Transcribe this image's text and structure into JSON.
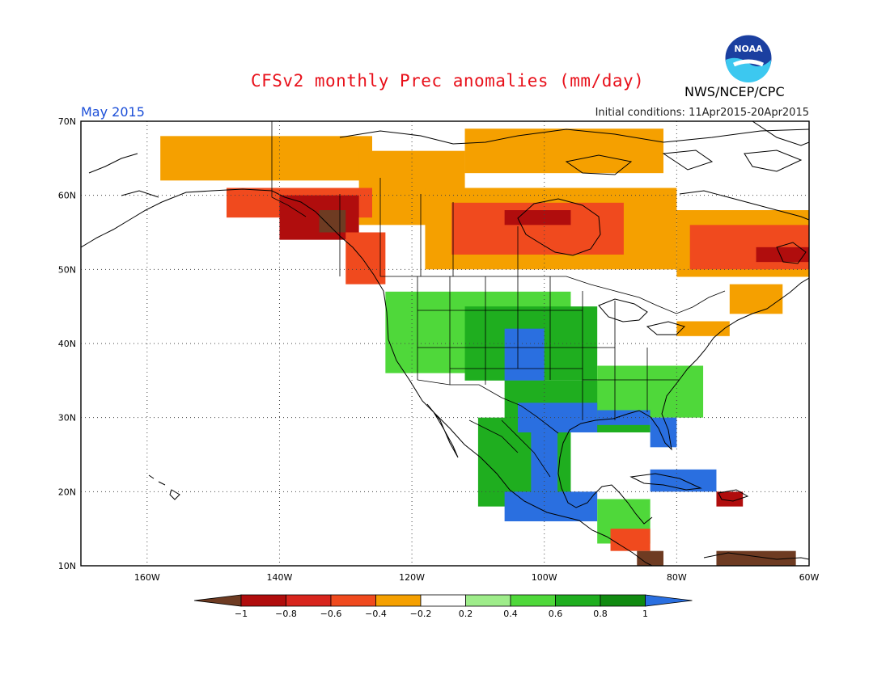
{
  "title": "CFSv2 monthly Prec anomalies (mm/day)",
  "agency": "NWS/NCEP/CPC",
  "valid_month": "May 2015",
  "initial_conditions": "Initial conditions: 11Apr2015-20Apr2015",
  "logo_text": "NOAA",
  "lat_labels": [
    "70N",
    "60N",
    "50N",
    "40N",
    "30N",
    "20N",
    "10N"
  ],
  "lon_labels": [
    "160W",
    "140W",
    "120W",
    "100W",
    "80W",
    "60W"
  ],
  "colorbar": {
    "ticks": [
      "-1",
      "-0.8",
      "-0.6",
      "-0.4",
      "-0.2",
      "0.2",
      "0.4",
      "0.6",
      "0.8",
      "1"
    ],
    "colors": [
      "#6e3b22",
      "#b00d0d",
      "#d8251d",
      "#f04a1e",
      "#f5a000",
      "#ffffff",
      "#9eec8a",
      "#4fd83a",
      "#1fae1f",
      "#108a10",
      "#2a6fe0"
    ]
  },
  "map": {
    "extent": {
      "lon": [
        -170,
        -60
      ],
      "lat": [
        10,
        70
      ]
    },
    "anomaly_regions": [
      {
        "name": "alaska-north-dry",
        "color": "#f5a000",
        "lon": [
          -158,
          -126
        ],
        "lat": [
          62,
          68
        ]
      },
      {
        "name": "yukon-dry",
        "color": "#f5a000",
        "lon": [
          -122,
          -112
        ],
        "lat": [
          60,
          64
        ]
      },
      {
        "name": "northwest-canada-dry",
        "color": "#f5a000",
        "lon": [
          -128,
          -112
        ],
        "lat": [
          56,
          66
        ]
      },
      {
        "name": "northern-canada-dry",
        "color": "#f5a000",
        "lon": [
          -112,
          -82
        ],
        "lat": [
          63,
          69
        ]
      },
      {
        "name": "prairie-dry",
        "color": "#f5a000",
        "lon": [
          -118,
          -80
        ],
        "lat": [
          50,
          61
        ]
      },
      {
        "name": "prairie-strong-dry",
        "color": "#f04a1e",
        "lon": [
          -114,
          -88
        ],
        "lat": [
          52,
          59
        ]
      },
      {
        "name": "hudson-dry-core",
        "color": "#b00d0d",
        "lon": [
          -106,
          -96
        ],
        "lat": [
          56,
          58
        ]
      },
      {
        "name": "quebec-dry",
        "color": "#f5a000",
        "lon": [
          -80,
          -60
        ],
        "lat": [
          49,
          58
        ]
      },
      {
        "name": "labrador-strong-dry",
        "color": "#f04a1e",
        "lon": [
          -78,
          -60
        ],
        "lat": [
          50,
          56
        ]
      },
      {
        "name": "labrador-dry-core",
        "color": "#b00d0d",
        "lon": [
          -68,
          -60
        ],
        "lat": [
          51,
          53
        ]
      },
      {
        "name": "maritimes-dry",
        "color": "#f5a000",
        "lon": [
          -72,
          -64
        ],
        "lat": [
          44,
          48
        ]
      },
      {
        "name": "gulf-alaska-coast-dry",
        "color": "#f04a1e",
        "lon": [
          -148,
          -126
        ],
        "lat": [
          57,
          61
        ]
      },
      {
        "name": "alaska-panhandle-very-dry",
        "color": "#b00d0d",
        "lon": [
          -140,
          -128
        ],
        "lat": [
          54,
          60
        ]
      },
      {
        "name": "bc-coast-driest",
        "color": "#6e3b22",
        "lon": [
          -134,
          -130
        ],
        "lat": [
          55,
          58
        ]
      },
      {
        "name": "bc-coast-dry",
        "color": "#f04a1e",
        "lon": [
          -130,
          -124
        ],
        "lat": [
          48,
          55
        ]
      },
      {
        "name": "northeast-us-dry",
        "color": "#f5a000",
        "lon": [
          -80,
          -72
        ],
        "lat": [
          41,
          43
        ]
      },
      {
        "name": "western-us-wet",
        "color": "#4fd83a",
        "lon": [
          -124,
          -96
        ],
        "lat": [
          36,
          47
        ]
      },
      {
        "name": "central-us-moderate-wet",
        "color": "#1fae1f",
        "lon": [
          -112,
          -92
        ],
        "lat": [
          35,
          45
        ]
      },
      {
        "name": "central-plains-very-wet",
        "color": "#2a6fe0",
        "lon": [
          -106,
          -100
        ],
        "lat": [
          35,
          42
        ]
      },
      {
        "name": "southern-plains-wet",
        "color": "#1fae1f",
        "lon": [
          -106,
          -84
        ],
        "lat": [
          28,
          35
        ]
      },
      {
        "name": "southeast-wet",
        "color": "#4fd83a",
        "lon": [
          -92,
          -76
        ],
        "lat": [
          30,
          37
        ]
      },
      {
        "name": "mexico-wet",
        "color": "#1fae1f",
        "lon": [
          -110,
          -96
        ],
        "lat": [
          18,
          30
        ]
      },
      {
        "name": "texas-gulf-very-wet",
        "color": "#2a6fe0",
        "lon": [
          -104,
          -92
        ],
        "lat": [
          28,
          32
        ]
      },
      {
        "name": "mexico-plateau-very-wet",
        "color": "#2a6fe0",
        "lon": [
          -102,
          -98
        ],
        "lat": [
          20,
          28
        ]
      },
      {
        "name": "southern-mexico-very-wet",
        "color": "#2a6fe0",
        "lon": [
          -106,
          -92
        ],
        "lat": [
          16,
          20
        ]
      },
      {
        "name": "gulf-coast-very-wet",
        "color": "#2a6fe0",
        "lon": [
          -92,
          -84
        ],
        "lat": [
          29,
          31
        ]
      },
      {
        "name": "florida-very-wet",
        "color": "#2a6fe0",
        "lon": [
          -84,
          -80
        ],
        "lat": [
          26,
          30
        ]
      },
      {
        "name": "cuba-very-wet",
        "color": "#2a6fe0",
        "lon": [
          -84,
          -74
        ],
        "lat": [
          20,
          23
        ]
      },
      {
        "name": "central-america-wet",
        "color": "#4fd83a",
        "lon": [
          -92,
          -84
        ],
        "lat": [
          13,
          19
        ]
      },
      {
        "name": "central-america-dry",
        "color": "#f04a1e",
        "lon": [
          -90,
          -84
        ],
        "lat": [
          12,
          15
        ]
      },
      {
        "name": "central-america-driest",
        "color": "#6e3b22",
        "lon": [
          -86,
          -82
        ],
        "lat": [
          9,
          12
        ]
      },
      {
        "name": "hispaniola-dry",
        "color": "#b00d0d",
        "lon": [
          -74,
          -70
        ],
        "lat": [
          18,
          20
        ]
      },
      {
        "name": "venezuela-dry",
        "color": "#6e3b22",
        "lon": [
          -74,
          -62
        ],
        "lat": [
          10,
          12
        ]
      }
    ]
  }
}
